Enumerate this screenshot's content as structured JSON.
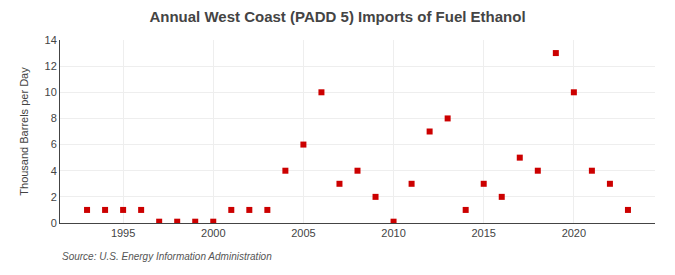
{
  "chart_data": {
    "type": "scatter",
    "title": "Annual West Coast (PADD 5) Imports of Fuel Ethanol",
    "ylabel": "Thousand Barrels per Day",
    "annotations": [
      "Source: U.S. Energy Information Administration"
    ],
    "x": [
      1993,
      1994,
      1995,
      1996,
      1997,
      1998,
      1999,
      2000,
      2001,
      2002,
      2003,
      2004,
      2005,
      2006,
      2007,
      2008,
      2009,
      2010,
      2011,
      2012,
      2013,
      2014,
      2015,
      2016,
      2017,
      2018,
      2019,
      2020,
      2021,
      2022,
      2023
    ],
    "values": [
      1,
      1,
      1,
      1,
      0.1,
      0.1,
      0.1,
      0.1,
      1,
      1,
      1,
      4,
      6,
      10,
      3,
      4,
      2,
      0.1,
      3,
      7,
      8,
      1,
      3,
      2,
      5,
      4,
      13,
      10,
      4,
      3,
      1
    ],
    "color": "#cc0000",
    "marker": "square",
    "xlim": [
      1991.5,
      2024.5
    ],
    "ylim": [
      0,
      14
    ],
    "xticks": [
      1995,
      2000,
      2005,
      2010,
      2015,
      2020
    ],
    "yticks": [
      0,
      2,
      4,
      6,
      8,
      10,
      12,
      14
    ],
    "grid": true
  }
}
